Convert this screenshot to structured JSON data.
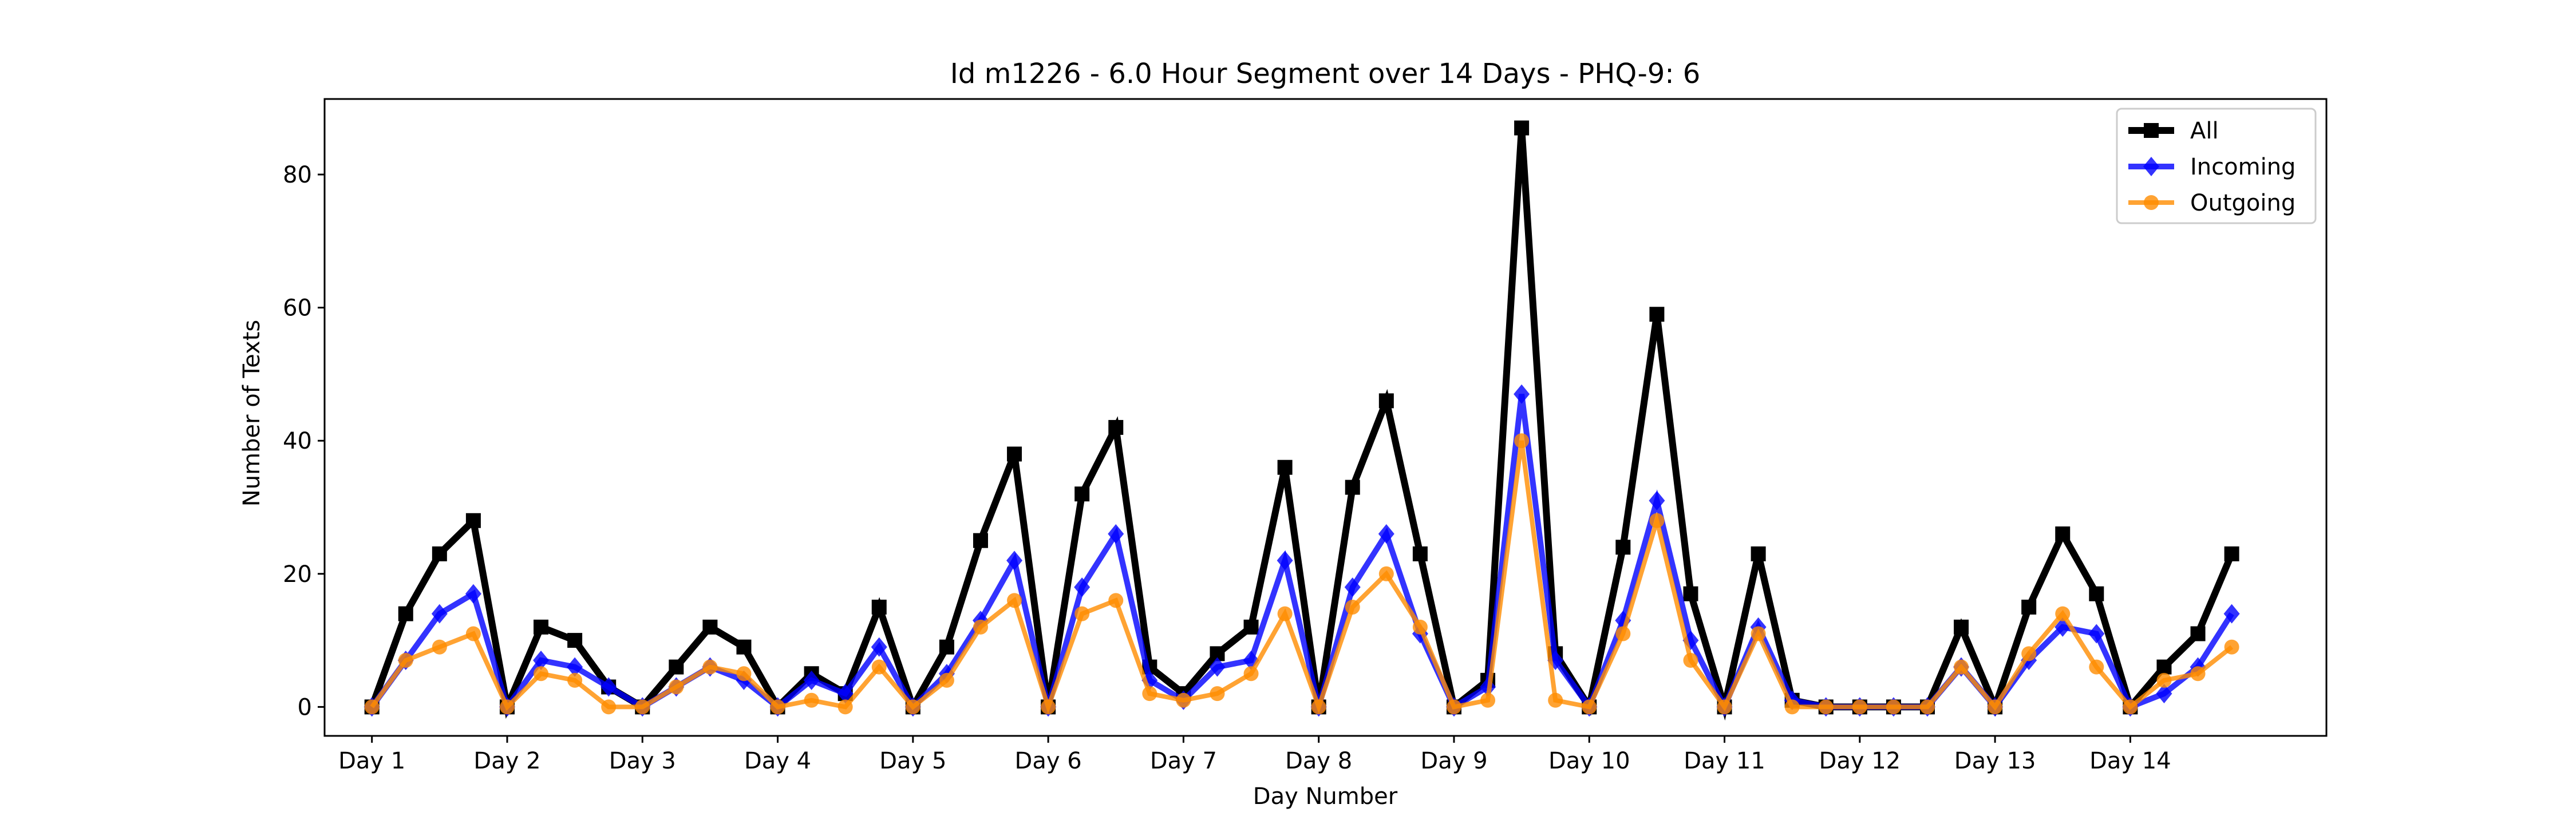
{
  "chart_data": {
    "type": "line",
    "title": "Id m1226 - 6.0 Hour Segment over 14 Days - PHQ-9: 6",
    "xlabel": "Day Number",
    "ylabel": "Number of Texts",
    "categories": [
      "Day 1",
      "Day 2",
      "Day 3",
      "Day 4",
      "Day 5",
      "Day 6",
      "Day 7",
      "Day 8",
      "Day 9",
      "Day 10",
      "Day 11",
      "Day 12",
      "Day 13",
      "Day 14"
    ],
    "x": [
      0,
      0.25,
      0.5,
      0.75,
      1,
      1.25,
      1.5,
      1.75,
      2,
      2.25,
      2.5,
      2.75,
      3,
      3.25,
      3.5,
      3.75,
      4,
      4.25,
      4.5,
      4.75,
      5,
      5.25,
      5.5,
      5.75,
      6,
      6.25,
      6.5,
      6.75,
      7,
      7.25,
      7.5,
      7.75,
      8,
      8.25,
      8.5,
      8.75,
      9,
      9.25,
      9.5,
      9.75,
      10,
      10.25,
      10.5,
      10.75,
      11,
      11.25,
      11.5,
      11.75,
      12,
      12.25,
      12.5,
      12.75,
      13,
      13.25,
      13.5,
      13.75
    ],
    "xlim": [
      -0.35,
      14.45
    ],
    "ylim": [
      -4.35,
      91.35
    ],
    "yticks": [
      0,
      20,
      40,
      60,
      80
    ],
    "grid": false,
    "legend_position": "top-right",
    "series": [
      {
        "name": "All",
        "color": "#000000",
        "marker": "square",
        "values": [
          0,
          14,
          23,
          28,
          0,
          12,
          10,
          3,
          0,
          6,
          12,
          9,
          0,
          5,
          2,
          15,
          0,
          9,
          25,
          38,
          0,
          32,
          42,
          6,
          2,
          8,
          12,
          36,
          0,
          33,
          46,
          23,
          0,
          4,
          87,
          8,
          0,
          24,
          59,
          17,
          0,
          23,
          1,
          0,
          0,
          0,
          0,
          12,
          0,
          15,
          26,
          17,
          0,
          6,
          11,
          23
        ]
      },
      {
        "name": "Incoming",
        "color": "#0000ff",
        "marker": "diamond",
        "values": [
          0,
          7,
          14,
          17,
          0,
          7,
          6,
          3,
          0,
          3,
          6,
          4,
          0,
          4,
          2,
          9,
          0,
          5,
          13,
          22,
          0,
          18,
          26,
          4,
          1,
          6,
          7,
          22,
          0,
          18,
          26,
          11,
          0,
          3,
          47,
          7,
          0,
          13,
          31,
          10,
          0,
          12,
          1,
          0,
          0,
          0,
          0,
          6,
          0,
          7,
          12,
          11,
          0,
          2,
          6,
          14
        ]
      },
      {
        "name": "Outgoing",
        "color": "#ff8c00",
        "marker": "circle",
        "values": [
          0,
          7,
          9,
          11,
          0,
          5,
          4,
          0,
          0,
          3,
          6,
          5,
          0,
          1,
          0,
          6,
          0,
          4,
          12,
          16,
          0,
          14,
          16,
          2,
          1,
          2,
          5,
          14,
          0,
          15,
          20,
          12,
          0,
          1,
          40,
          1,
          0,
          11,
          28,
          7,
          0,
          11,
          0,
          0,
          0,
          0,
          0,
          6,
          0,
          8,
          14,
          6,
          0,
          4,
          5,
          9
        ]
      }
    ]
  }
}
